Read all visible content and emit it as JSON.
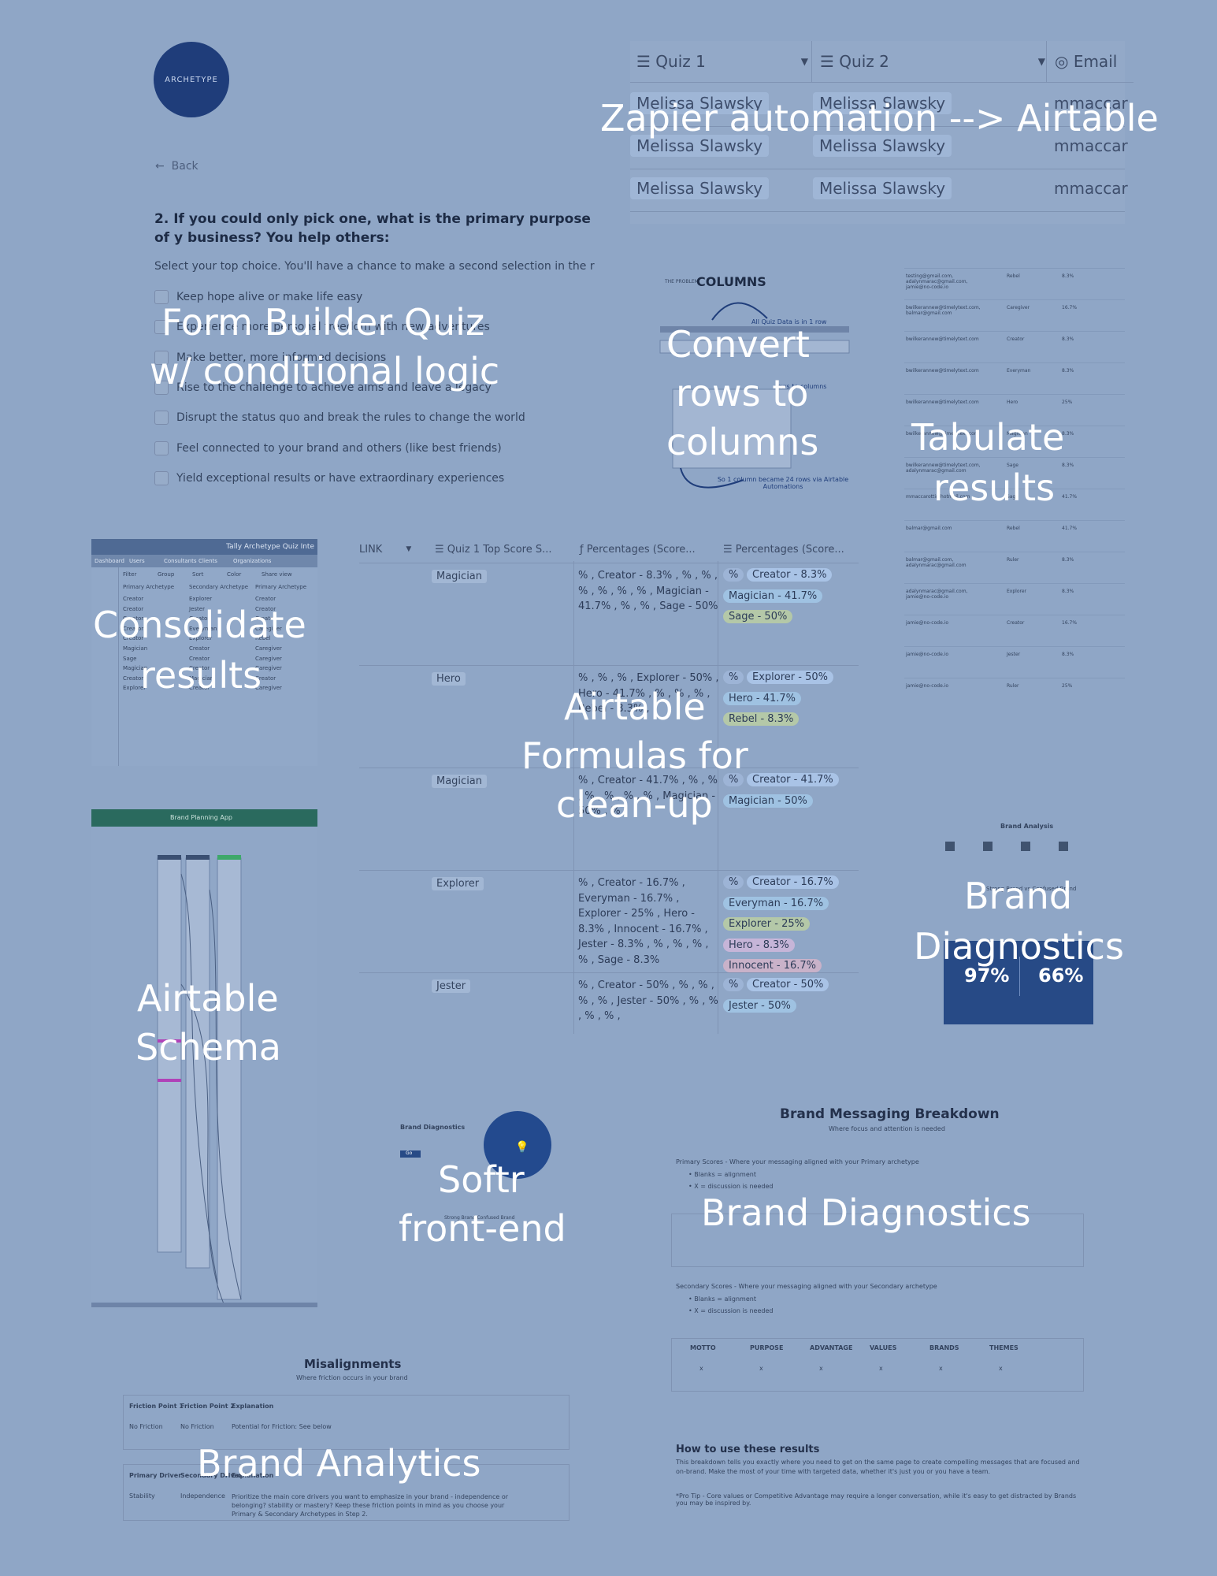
{
  "form_builder": {
    "logo_text": "ARCHETYPE",
    "back_label": "Back",
    "question_title": "2. If you could only pick one, what is the primary purpose of y business? You help others:",
    "question_subtitle": "Select your top choice. You'll have a chance to make a second selection in the r",
    "options": [
      "Keep hope alive or make life easy",
      "Experience more personal freedom with new adventures",
      "Make better, more informed decisions",
      "Rise to the challenge to achieve aims and leave a legacy",
      "Disrupt the status quo and break the rules to change the world",
      "Feel connected to your brand and others (like best friends)",
      "Yield exceptional results or have extraordinary experiences"
    ]
  },
  "airtable_top": {
    "columns": [
      "Quiz 1",
      "Quiz 2",
      "Email"
    ],
    "rows": [
      [
        "Melissa Slawsky",
        "Melissa Slawsky",
        "mmaccar"
      ],
      [
        "Melissa Slawsky",
        "Melissa Slawsky",
        "mmaccar"
      ],
      [
        "Melissa Slawsky",
        "Melissa Slawsky",
        "mmaccar"
      ]
    ]
  },
  "columns_diagram": {
    "header_small": "THE PROBLEM",
    "header": "COLUMNS",
    "note_top": "All Quiz Data is in 1 row",
    "note_mid": "rows to columns",
    "note_bottom": "So 1 column became 24 rows via Airtable Automations"
  },
  "tabulate_rows": [
    [
      "testing@gmail.com, adalynmarac@gmail.com, jamie@no-code.io",
      "Rebel",
      "8.3%"
    ],
    [
      "bwilkerannew@timelytext.com, balmar@gmail.com",
      "Caregiver",
      "16.7%"
    ],
    [
      "bwilkerannew@timelytext.com",
      "Creator",
      "8.3%"
    ],
    [
      "bwilkerannew@timelytext.com",
      "Everyman",
      "8.3%"
    ],
    [
      "bwilkerannew@timelytext.com",
      "Hero",
      "25%"
    ],
    [
      "bwilkerannew@timelytext.com",
      "Magician",
      "8.3%"
    ],
    [
      "bwilkerannew@timelytext.com, adalynmarac@gmail.com",
      "Sage",
      "8.3%"
    ],
    [
      "mmaccarotti@hotmail.com",
      "Sage",
      "41.7%"
    ],
    [
      "balmar@gmail.com",
      "Rebel",
      "41.7%"
    ],
    [
      "balmar@gmail.com, adalynmarac@gmail.com",
      "Ruler",
      "8.3%"
    ],
    [
      "adalynmarac@gmail.com, jamie@no-code.io",
      "Explorer",
      "8.3%"
    ],
    [
      "jamie@no-code.io",
      "Creator",
      "16.7%"
    ],
    [
      "jamie@no-code.io",
      "Jester",
      "8.3%"
    ],
    [
      "jamie@no-code.io",
      "Ruler",
      "25%"
    ]
  ],
  "consolidate": {
    "title": "Tally Archetype Quiz Inte",
    "nav": [
      "Dashboard",
      "Users",
      "Consultants",
      "Clients",
      "Organizations"
    ],
    "toolbar": [
      "Filter",
      "Group",
      "Sort",
      "Color",
      "Share view"
    ],
    "cols": [
      "Primary Archetype",
      "Secondary Archetype",
      "Primary Archetype"
    ],
    "rows": [
      [
        "Creator",
        "Explorer",
        "Creator"
      ],
      [
        "Creator",
        "Jester",
        "Creator"
      ],
      [
        "Creator",
        "Creator",
        "Creator"
      ],
      [
        "Creator",
        "Everyman",
        "Caregiver"
      ],
      [
        "Creator",
        "Explorer",
        "Rebel"
      ],
      [
        "Magician",
        "Creator",
        "Caregiver"
      ],
      [
        "Sage",
        "Creator",
        "Caregiver"
      ],
      [
        "Magician",
        "Creator",
        "Caregiver"
      ],
      [
        "Creator",
        "Magician",
        "Creator"
      ],
      [
        "Explorer",
        "Creator",
        "Caregiver"
      ]
    ]
  },
  "formula_table": {
    "headers": [
      "LINK",
      "Quiz 1 Top Score S...",
      "Percentages (Score...",
      "Percentages (Score..."
    ],
    "rows": [
      {
        "cat": "Magician",
        "text": "% , Creator - 8.3% , % , % , % , % , % , % , Magician - 41.7% , % , % , Sage - 50%",
        "tags": [
          "%",
          "Creator - 8.3%",
          "Magician - 41.7%",
          "Sage - 50%"
        ]
      },
      {
        "cat": "Hero",
        "text": "% , % , % , Explorer - 50% , Hero - 41.7% , % , % , % , Rebel - 8.3% ,",
        "tags": [
          "%",
          "Explorer - 50%",
          "Hero - 41.7%",
          "Rebel - 8.3%"
        ]
      },
      {
        "cat": "Magician",
        "text": "% , Creator - 41.7% , % , % , % , % , % , % , Magician - 50% , % ,",
        "tags": [
          "%",
          "Creator - 41.7%",
          "Magician - 50%"
        ]
      },
      {
        "cat": "Explorer",
        "text": "% , Creator - 16.7% , Everyman - 16.7% , Explorer - 25% , Hero - 8.3% , Innocent - 16.7% , Jester - 8.3% , % , % , % , % , Sage - 8.3%",
        "tags": [
          "%",
          "Creator - 16.7%",
          "Everyman - 16.7%",
          "Explorer - 25%",
          "Hero - 8.3%",
          "Innocent - 16.7%"
        ]
      },
      {
        "cat": "Jester",
        "text": "% , Creator - 50% , % , % , % , % , Jester - 50% , % , % , % , % ,",
        "tags": [
          "%",
          "Creator - 50%",
          "Jester - 50%"
        ]
      }
    ]
  },
  "schema": {
    "title": "Brand Planning App"
  },
  "brand_diag_top": {
    "title": "Brand Analysis",
    "subtitle": "Strong Brand vs Confused Brand",
    "stat1": "97%",
    "stat2": "66%"
  },
  "softr": {
    "title": "Brand Diagnostics",
    "button": "Go",
    "sub": "Strong Brand    Confused Brand"
  },
  "messaging": {
    "title": "Brand Messaging Breakdown",
    "subtitle": "Where focus and attention is needed",
    "primary": "Primary Scores - Where your messaging aligned with your Primary archetype",
    "bullets": [
      "Blanks = alignment",
      "X = discussion is needed"
    ],
    "secondary": "Secondary Scores - Where your messaging aligned with your Secondary archetype",
    "cols": [
      "MOTTO",
      "PURPOSE",
      "ADVANTAGE",
      "VALUES",
      "BRANDS",
      "THEMES"
    ],
    "how_title": "How to use these results",
    "how_text": "This breakdown tells you exactly where you need to get on the same page to create compelling messages that are focused and on-brand. Make the most of your time with targeted data, whether it's just you or you have a team.",
    "pro_tip": "*Pro Tip - Core values or Competitive Advantage may require a longer conversation, while it's easy to get distracted by Brands you may be inspired by."
  },
  "misalignments": {
    "title": "Misalignments",
    "subtitle": "Where friction occurs in your brand",
    "cols1": [
      "Friction Point 1",
      "Friction Point 2",
      "Explanation"
    ],
    "row1": [
      "No Friction",
      "No Friction",
      "Potential for Friction: See below"
    ],
    "cols2": [
      "Primary Driver",
      "Secondary Driver",
      "Explanation"
    ],
    "row2": [
      "Stability",
      "Independence",
      "Prioritize the main core drivers you want to emphasize in your brand - independence or belonging? stability or mastery? Keep these friction points in mind as you choose your Primary & Secondary Archetypes in Step 2."
    ]
  },
  "labels": {
    "zapier": "Zapier automation --> Airtable",
    "form_builder_1": "Form Builder Quiz",
    "form_builder_2": "w/ conditional logic",
    "convert_1": "Convert",
    "convert_2": "rows to",
    "convert_3": "columns",
    "tabulate_1": "Tabulate",
    "tabulate_2": "results",
    "consolidate_1": "Consolidate",
    "consolidate_2": "results",
    "formulas_1": "Airtable",
    "formulas_2": "Formulas for",
    "formulas_3": "clean-up",
    "diagnostics_1": "Brand",
    "diagnostics_2": "Diagnostics",
    "schema_1": "Airtable",
    "schema_2": "Schema",
    "softr_1": "Softr",
    "softr_2": "front-end",
    "diagnostics_full": "Brand Diagnostics",
    "analytics": "Brand Analytics"
  },
  "colors": {
    "background": "#8fa6c6",
    "overlay_text": "#ffffff",
    "brand_dark": "#1f3d7a",
    "schema_header": "#1f6a5a"
  }
}
